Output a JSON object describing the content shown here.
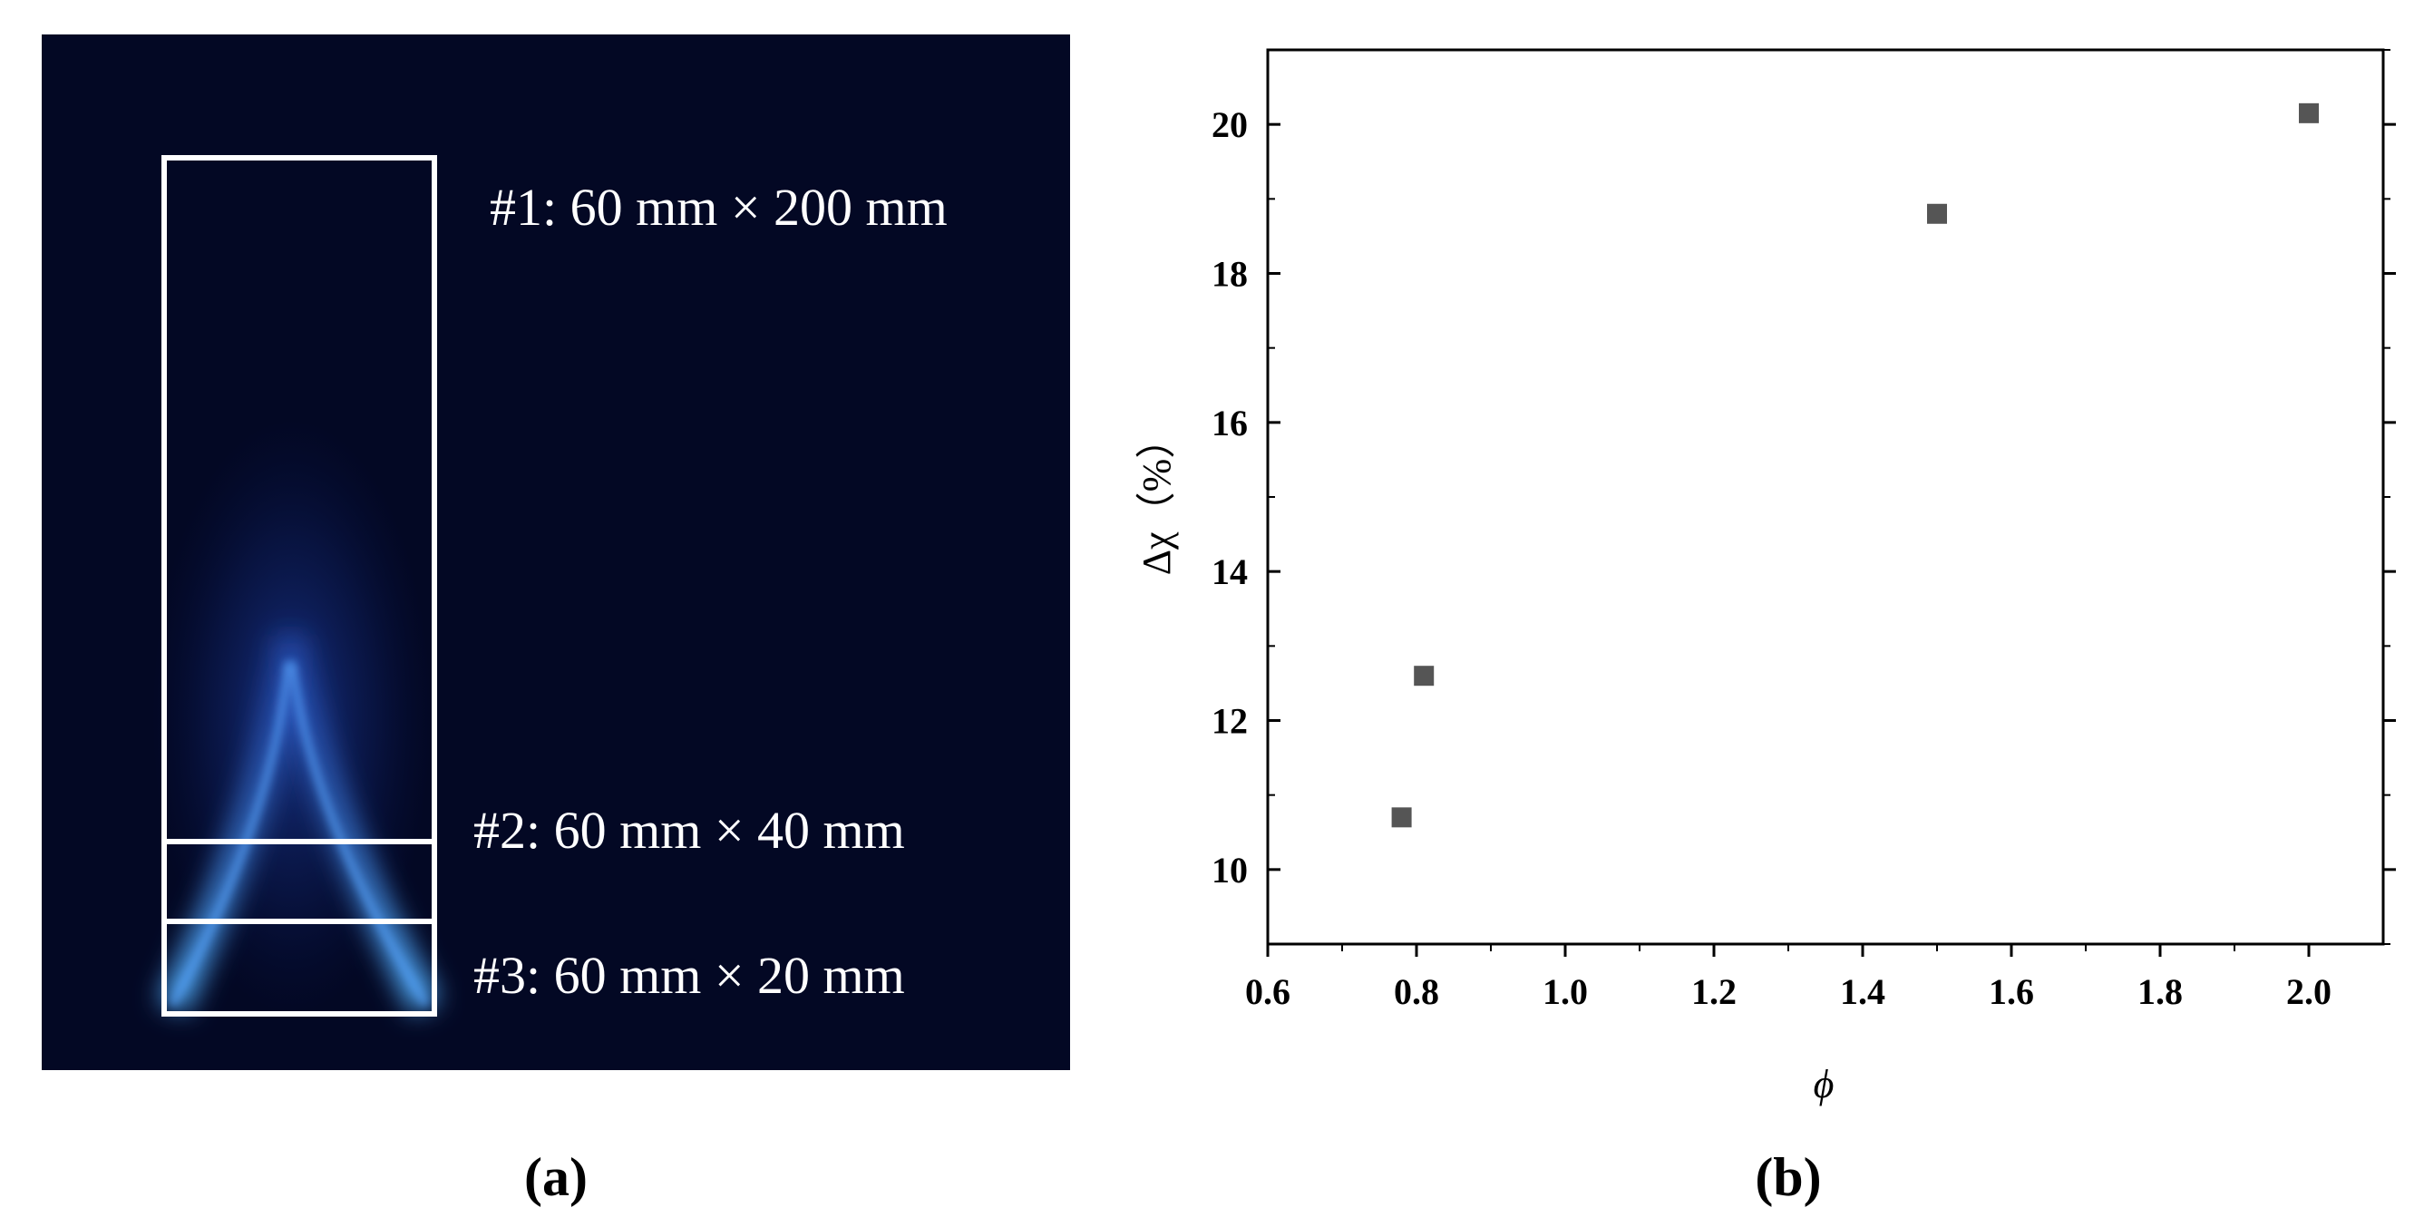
{
  "panel_a": {
    "label": "(a)",
    "regions": [
      {
        "id": "#1",
        "text": "#1: 60 mm × 200 mm"
      },
      {
        "id": "#2",
        "text": "#2: 60 mm × 40 mm"
      },
      {
        "id": "#3",
        "text": "#3: 60 mm × 20 mm"
      }
    ],
    "colors": {
      "background": "#030824",
      "flame": "#2f6cff",
      "frame": "#ffffff"
    }
  },
  "panel_b": {
    "label": "(b)"
  },
  "chart_data": {
    "type": "scatter",
    "title": "",
    "xlabel": "ϕ",
    "ylabel": "Δχ（%）",
    "xlim": [
      0.6,
      2.1
    ],
    "ylim": [
      9,
      21
    ],
    "xticks": [
      "0.6",
      "0.8",
      "1.0",
      "1.2",
      "1.4",
      "1.6",
      "1.8",
      "2.0"
    ],
    "yticks": [
      "10",
      "12",
      "14",
      "16",
      "18",
      "20"
    ],
    "grid": false,
    "marker": "square",
    "marker_color": "#555555",
    "series": [
      {
        "points": [
          {
            "x": 0.78,
            "y": 10.7
          },
          {
            "x": 0.81,
            "y": 12.6
          },
          {
            "x": 1.5,
            "y": 18.8
          },
          {
            "x": 2.0,
            "y": 20.15
          }
        ]
      }
    ]
  }
}
